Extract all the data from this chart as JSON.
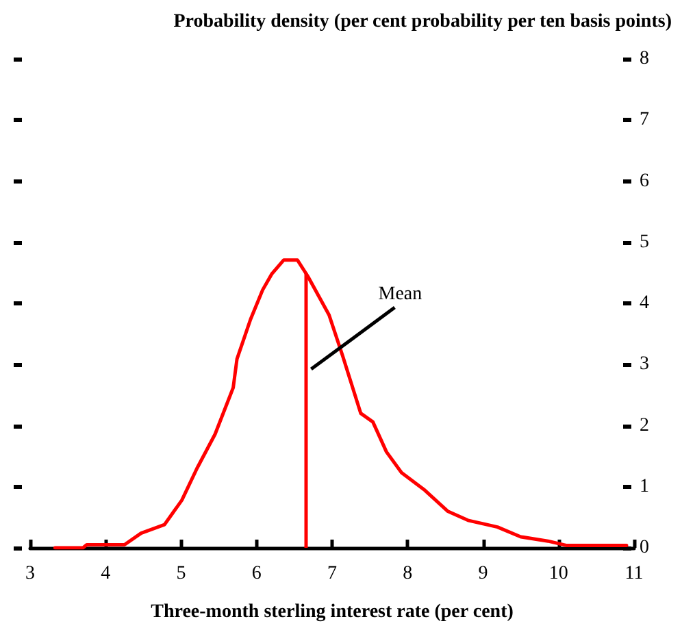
{
  "chart_data": {
    "type": "line",
    "title": "Probability density (per cent probability per ten basis points)",
    "xlabel": "Three-month sterling interest rate (per cent)",
    "x": [
      3.33,
      3.7,
      3.75,
      4.25,
      4.47,
      4.78,
      5.01,
      5.21,
      5.45,
      5.69,
      5.74,
      5.92,
      6.08,
      6.2,
      6.36,
      6.54,
      6.68,
      6.96,
      7.14,
      7.38,
      7.54,
      7.72,
      7.92,
      8.23,
      8.53,
      8.8,
      9.19,
      9.5,
      9.86,
      10.1,
      10.9
    ],
    "series": [
      {
        "color": "#ff0000",
        "values": [
          0,
          0,
          0.05,
          0.05,
          0.24,
          0.38,
          0.78,
          1.3,
          1.86,
          2.62,
          3.09,
          3.74,
          4.22,
          4.48,
          4.71,
          4.71,
          4.44,
          3.81,
          3.14,
          2.2,
          2.06,
          1.57,
          1.23,
          0.94,
          0.6,
          0.45,
          0.34,
          0.18,
          0.11,
          0.04,
          0.04
        ]
      }
    ],
    "xlim": [
      3,
      11
    ],
    "xticks": [
      3,
      4,
      5,
      6,
      7,
      8,
      9,
      10,
      11
    ],
    "ylim": [
      0,
      8
    ],
    "yticks": [
      0,
      1,
      2,
      3,
      4,
      5,
      6,
      7,
      8
    ],
    "ref_lines": [
      {
        "axis": "x",
        "value": 6.65,
        "label": "Mean",
        "color": "#ff0000"
      }
    ],
    "grid": false,
    "marker": "none",
    "line_style": "solid"
  }
}
